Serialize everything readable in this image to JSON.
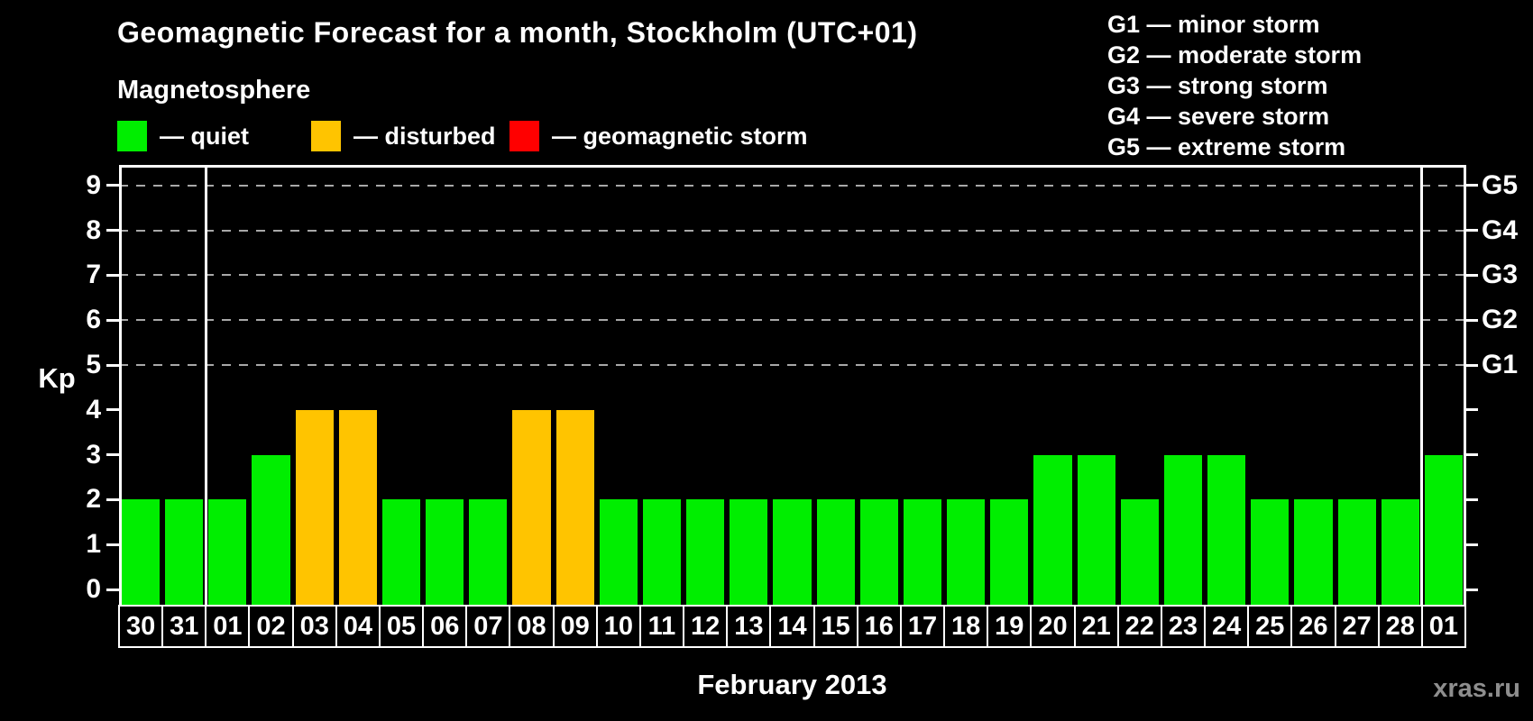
{
  "title": "Geomagnetic Forecast for a month, Stockholm (UTC+01)",
  "subtitle": "Magnetosphere",
  "legend": [
    {
      "key": "quiet",
      "label": "— quiet",
      "color": "#00ee00"
    },
    {
      "key": "disturbed",
      "label": "— disturbed",
      "color": "#ffc400"
    },
    {
      "key": "storm",
      "label": "— geomagnetic storm",
      "color": "#ff0000"
    }
  ],
  "storm_legend": [
    "G1 — minor storm",
    "G2 — moderate storm",
    "G3 — strong storm",
    "G4 — severe storm",
    "G5 — extreme storm"
  ],
  "watermark": "xras.ru",
  "chart_data": {
    "type": "bar",
    "title": "Geomagnetic Forecast for a month, Stockholm (UTC+01)",
    "ylabel": "Kp",
    "xlabel": "February 2013",
    "ylim": [
      0,
      9
    ],
    "yticks": [
      0,
      1,
      2,
      3,
      4,
      5,
      6,
      7,
      8,
      9
    ],
    "grid_values": [
      5,
      6,
      7,
      8,
      9
    ],
    "grid_on": true,
    "legend_position": "top-left",
    "right_axis": [
      {
        "value": 5,
        "label": "G1"
      },
      {
        "value": 6,
        "label": "G2"
      },
      {
        "value": 7,
        "label": "G3"
      },
      {
        "value": 8,
        "label": "G4"
      },
      {
        "value": 9,
        "label": "G5"
      }
    ],
    "categories": [
      "30",
      "31",
      "01",
      "02",
      "03",
      "04",
      "05",
      "06",
      "07",
      "08",
      "09",
      "10",
      "11",
      "12",
      "13",
      "14",
      "15",
      "16",
      "17",
      "18",
      "19",
      "20",
      "21",
      "22",
      "23",
      "24",
      "25",
      "26",
      "27",
      "28",
      "01"
    ],
    "values": [
      2,
      2,
      2,
      3,
      4,
      4,
      2,
      2,
      2,
      4,
      4,
      2,
      2,
      2,
      2,
      2,
      2,
      2,
      2,
      2,
      2,
      3,
      3,
      2,
      3,
      3,
      2,
      2,
      2,
      2,
      3
    ],
    "statuses": [
      "quiet",
      "quiet",
      "quiet",
      "quiet",
      "disturbed",
      "disturbed",
      "quiet",
      "quiet",
      "quiet",
      "disturbed",
      "disturbed",
      "quiet",
      "quiet",
      "quiet",
      "quiet",
      "quiet",
      "quiet",
      "quiet",
      "quiet",
      "quiet",
      "quiet",
      "quiet",
      "quiet",
      "quiet",
      "quiet",
      "quiet",
      "quiet",
      "quiet",
      "quiet",
      "quiet",
      "quiet"
    ],
    "bar_colors": {
      "quiet": "#00ee00",
      "disturbed": "#ffc400",
      "storm": "#ff0000"
    },
    "month_separator_after_index": [
      1,
      29
    ]
  }
}
